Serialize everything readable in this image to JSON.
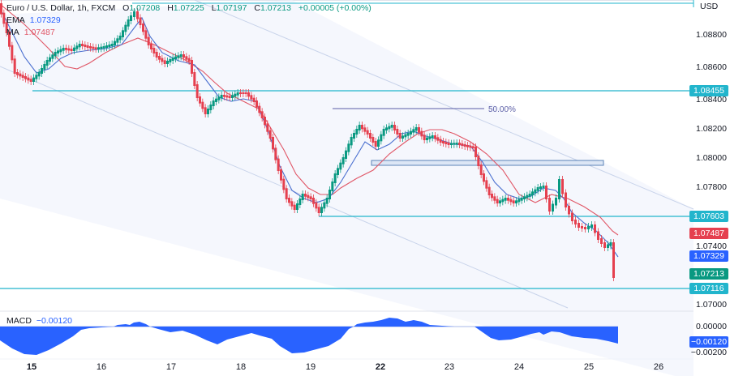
{
  "header": {
    "symbol": "Euro / U.S. Dollar, 1h, FXCM",
    "open_label": "O",
    "open": "1.07208",
    "high_label": "H",
    "high": "1.07225",
    "low_label": "L",
    "low": "1.07197",
    "close_label": "C",
    "close": "1.07213",
    "change": "+0.00005 (+0.00%)"
  },
  "indicators": {
    "ema_label": "EMA",
    "ema_value": "1.07329",
    "ma_label": "MA",
    "ma_value": "1.07487",
    "macd_label": "MACD",
    "macd_value": "−0.00120"
  },
  "price_axis": {
    "currency": "USD",
    "ticks": [
      "1.08800",
      "1.08600",
      "1.08400",
      "1.08200",
      "1.08000",
      "1.07800",
      "1.07400",
      "1.07000"
    ],
    "tags": [
      {
        "label": "1.08455",
        "color": "#22b5cc",
        "kind": "level"
      },
      {
        "label": "1.07603",
        "color": "#22b5cc",
        "kind": "level"
      },
      {
        "label": "1.07487",
        "color": "#e5404f",
        "kind": "ma"
      },
      {
        "label": "1.07329",
        "color": "#2962ff",
        "kind": "ema"
      },
      {
        "label": "1.07213",
        "color": "#089981",
        "kind": "last-price"
      },
      {
        "label": "1.07116",
        "color": "#22b5cc",
        "kind": "level"
      }
    ]
  },
  "macd_axis": {
    "ticks": [
      "0.00000",
      "−0.00200"
    ],
    "tag": {
      "label": "−0.00120",
      "color": "#2962ff"
    }
  },
  "time_axis": {
    "labels": [
      {
        "text": "15",
        "bold": true
      },
      {
        "text": "16",
        "bold": false
      },
      {
        "text": "17",
        "bold": false
      },
      {
        "text": "18",
        "bold": false
      },
      {
        "text": "19",
        "bold": false
      },
      {
        "text": "22",
        "bold": true
      },
      {
        "text": "23",
        "bold": false
      },
      {
        "text": "24",
        "bold": false
      },
      {
        "text": "25",
        "bold": false
      },
      {
        "text": "26",
        "bold": false
      }
    ]
  },
  "annotations": {
    "fib_label": "50.00%"
  },
  "colors": {
    "up": "#089981",
    "down": "#e5404f",
    "ema": "#2962ff",
    "ma": "#e05666",
    "level": "#22b5cc",
    "channel": "#b2c3e0",
    "macd_fill": "#2962ff"
  },
  "chart_data": {
    "type": "candlestick",
    "title": "Euro / U.S. Dollar, 1h, FXCM",
    "xlabel": "",
    "ylabel": "USD",
    "x": [
      "15",
      "16",
      "17",
      "18",
      "19",
      "22",
      "23",
      "24",
      "25",
      "26"
    ],
    "ylim": [
      1.0695,
      1.0895
    ],
    "approx_close_path": [
      {
        "x": "15",
        "price": 1.0855
      },
      {
        "x": "15.5",
        "price": 1.087
      },
      {
        "x": "16",
        "price": 1.0878
      },
      {
        "x": "16.5",
        "price": 1.0888
      },
      {
        "x": "17",
        "price": 1.0868
      },
      {
        "x": "17.5",
        "price": 1.0855
      },
      {
        "x": "18",
        "price": 1.0842
      },
      {
        "x": "18.5",
        "price": 1.08
      },
      {
        "x": "19",
        "price": 1.0765
      },
      {
        "x": "19.5",
        "price": 1.0775
      },
      {
        "x": "22",
        "price": 1.0825
      },
      {
        "x": "22.5",
        "price": 1.0815
      },
      {
        "x": "23",
        "price": 1.0808
      },
      {
        "x": "23.5",
        "price": 1.0775
      },
      {
        "x": "24",
        "price": 1.077
      },
      {
        "x": "24.5",
        "price": 1.078
      },
      {
        "x": "24.7",
        "price": 1.0755
      },
      {
        "x": "25",
        "price": 1.0745
      },
      {
        "x": "25.4",
        "price": 1.07213
      }
    ],
    "series": [
      {
        "name": "EMA",
        "last": 1.07329
      },
      {
        "name": "MA",
        "last": 1.07487
      },
      {
        "name": "MACD",
        "last": -0.0012
      }
    ],
    "levels": [
      1.08455,
      1.07603,
      1.07116
    ],
    "ohlc_last": {
      "open": 1.07208,
      "high": 1.07225,
      "low": 1.07197,
      "close": 1.07213
    },
    "annotations": [
      "50.00% Fibonacci level",
      "Descending channel",
      "Rectangle zone ~1.0795-1.0798"
    ],
    "grid": false,
    "legend_position": "top-left"
  }
}
